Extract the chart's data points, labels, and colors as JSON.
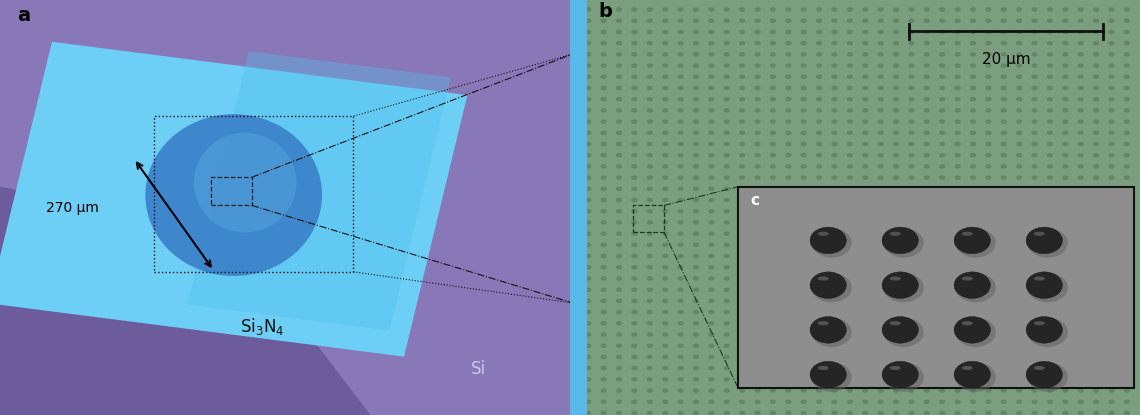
{
  "fig_width": 11.4,
  "fig_height": 4.15,
  "dpi": 100,
  "panel_a": {
    "si_bg_color": "#8878b8",
    "si_bg_color2": "#7060a8",
    "membrane_color": "#6dcff6",
    "membrane_shade": "#50c0ee",
    "circle_color": "#3a80c8",
    "label_a": "a",
    "label_si3n4": "Si$_3$N$_4$",
    "label_si": "Si",
    "label_270": "270 μm"
  },
  "panel_b": {
    "bg_color": "#7a9e7e",
    "bg_dot_color": "#5a7e5e",
    "blue_strip_color": "#5ab8e8",
    "inset_bg_color": "#909090",
    "label_b": "b",
    "label_c": "c",
    "scalebar_text": "20 μm"
  }
}
